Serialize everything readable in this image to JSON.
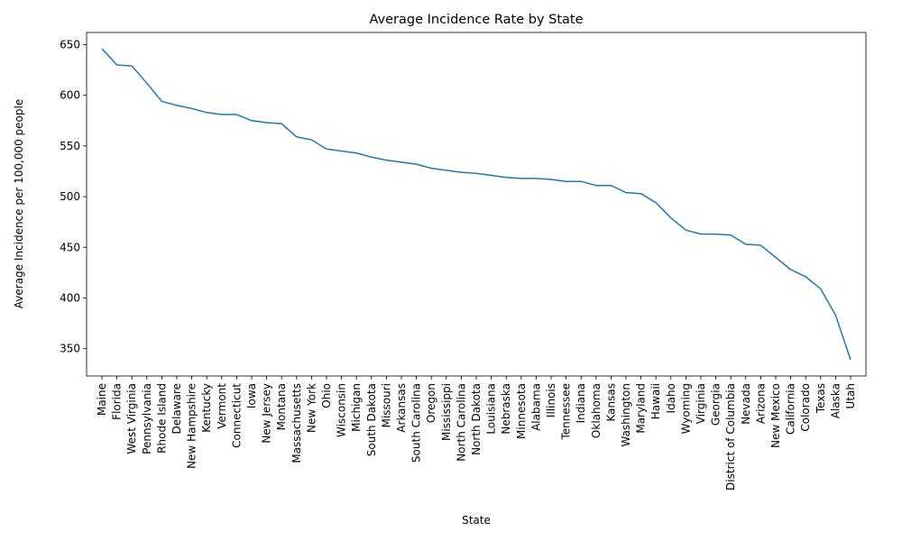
{
  "chart_data": {
    "type": "line",
    "title": "Average Incidence Rate by State",
    "xlabel": "State",
    "ylabel": "Average Incidence per 100,000 people",
    "ylim": [
      323,
      662
    ],
    "yticks": [
      350,
      400,
      450,
      500,
      550,
      600,
      650
    ],
    "grid": false,
    "legend": "none",
    "line_color": "#1f77b4",
    "categories": [
      "Maine",
      "Florida",
      "West Virginia",
      "Pennsylvania",
      "Rhode Island",
      "Delaware",
      "New Hampshire",
      "Kentucky",
      "Vermont",
      "Connecticut",
      "Iowa",
      "New Jersey",
      "Montana",
      "Massachusetts",
      "New York",
      "Ohio",
      "Wisconsin",
      "Michigan",
      "South Dakota",
      "Missouri",
      "Arkansas",
      "South Carolina",
      "Oregon",
      "Mississippi",
      "North Carolina",
      "North Dakota",
      "Louisiana",
      "Nebraska",
      "Minnesota",
      "Alabama",
      "Illinois",
      "Tennessee",
      "Indiana",
      "Oklahoma",
      "Kansas",
      "Washington",
      "Maryland",
      "Hawaii",
      "Idaho",
      "Wyoming",
      "Virginia",
      "Georgia",
      "District of Columbia",
      "Nevada",
      "Arizona",
      "New Mexico",
      "California",
      "Colorado",
      "Texas",
      "Alaska",
      "Utah"
    ],
    "values": [
      646,
      630,
      629,
      612,
      594,
      590,
      587,
      583,
      581,
      581,
      575,
      573,
      572,
      559,
      556,
      547,
      545,
      543,
      539,
      536,
      534,
      532,
      528,
      526,
      524,
      523,
      521,
      519,
      518,
      518,
      517,
      515,
      515,
      511,
      511,
      504,
      503,
      494,
      479,
      467,
      463,
      463,
      462,
      453,
      452,
      440,
      428,
      421,
      409,
      383,
      339
    ]
  }
}
